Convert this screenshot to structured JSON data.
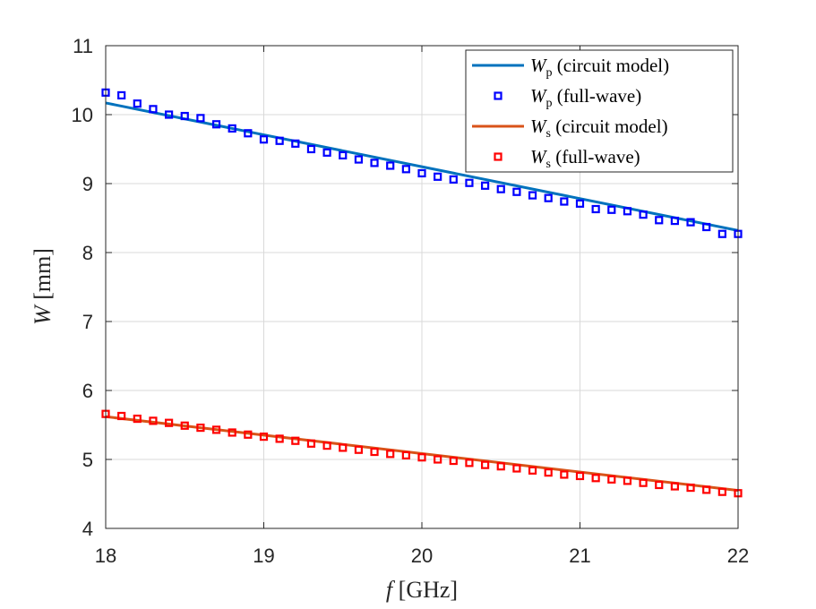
{
  "chart_data": {
    "type": "line",
    "title": "",
    "xlabel": "f [GHz]",
    "ylabel": "W [mm]",
    "xlim": [
      18,
      22
    ],
    "ylim": [
      4,
      11
    ],
    "xticks": [
      18,
      19,
      20,
      21,
      22
    ],
    "yticks": [
      4,
      5,
      6,
      7,
      8,
      9,
      10,
      11
    ],
    "grid": true,
    "legend_position": "top-right",
    "series": [
      {
        "name": "W_p (circuit model)",
        "legend_main": "W",
        "legend_sub": "p",
        "legend_rest": " (circuit model)",
        "style": "line",
        "color": "#0072BD",
        "x": [
          18,
          22
        ],
        "y": [
          10.17,
          8.32
        ]
      },
      {
        "name": "W_p (full-wave)",
        "legend_main": "W",
        "legend_sub": "p",
        "legend_rest": " (full-wave)",
        "style": "markers",
        "color": "#0000FF",
        "x": [
          18.0,
          18.1,
          18.2,
          18.3,
          18.4,
          18.5,
          18.6,
          18.7,
          18.8,
          18.9,
          19.0,
          19.1,
          19.2,
          19.3,
          19.4,
          19.5,
          19.6,
          19.7,
          19.8,
          19.9,
          20.0,
          20.1,
          20.2,
          20.3,
          20.4,
          20.5,
          20.6,
          20.7,
          20.8,
          20.9,
          21.0,
          21.1,
          21.2,
          21.3,
          21.4,
          21.5,
          21.6,
          21.7,
          21.8,
          21.9,
          22.0
        ],
        "y": [
          10.32,
          10.28,
          10.16,
          10.08,
          10.0,
          9.98,
          9.95,
          9.86,
          9.8,
          9.73,
          9.64,
          9.62,
          9.58,
          9.5,
          9.45,
          9.41,
          9.35,
          9.3,
          9.26,
          9.21,
          9.15,
          9.1,
          9.06,
          9.01,
          8.97,
          8.92,
          8.88,
          8.83,
          8.79,
          8.74,
          8.71,
          8.63,
          8.62,
          8.6,
          8.55,
          8.47,
          8.46,
          8.44,
          8.37,
          8.27,
          8.27
        ]
      },
      {
        "name": "W_s (circuit model)",
        "legend_main": "W",
        "legend_sub": "s",
        "legend_rest": " (circuit model)",
        "style": "line",
        "color": "#D95319",
        "x": [
          18,
          22
        ],
        "y": [
          5.62,
          4.55
        ]
      },
      {
        "name": "W_s (full-wave)",
        "legend_main": "W",
        "legend_sub": "s",
        "legend_rest": " (full-wave)",
        "style": "markers",
        "color": "#FF0000",
        "x": [
          18.0,
          18.1,
          18.2,
          18.3,
          18.4,
          18.5,
          18.6,
          18.7,
          18.8,
          18.9,
          19.0,
          19.1,
          19.2,
          19.3,
          19.4,
          19.5,
          19.6,
          19.7,
          19.8,
          19.9,
          20.0,
          20.1,
          20.2,
          20.3,
          20.4,
          20.5,
          20.6,
          20.7,
          20.8,
          20.9,
          21.0,
          21.1,
          21.2,
          21.3,
          21.4,
          21.5,
          21.6,
          21.7,
          21.8,
          21.9,
          22.0
        ],
        "y": [
          5.66,
          5.63,
          5.59,
          5.56,
          5.53,
          5.49,
          5.46,
          5.43,
          5.39,
          5.36,
          5.33,
          5.3,
          5.27,
          5.23,
          5.2,
          5.17,
          5.14,
          5.11,
          5.08,
          5.06,
          5.03,
          5.0,
          4.98,
          4.95,
          4.92,
          4.9,
          4.87,
          4.84,
          4.81,
          4.78,
          4.76,
          4.73,
          4.71,
          4.69,
          4.66,
          4.63,
          4.61,
          4.59,
          4.56,
          4.53,
          4.51
        ]
      }
    ]
  }
}
